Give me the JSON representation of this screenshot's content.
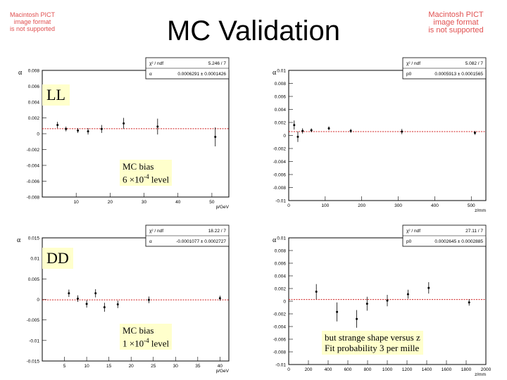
{
  "page_title": "MC Validation",
  "pict_notice": {
    "left": [
      "Macintosh PICT",
      "image format",
      "is not supported"
    ],
    "right": [
      "Macintosh PICT",
      "image format",
      "is not supported"
    ]
  },
  "labels": {
    "ll": "LL",
    "dd": "DD",
    "note_ll": [
      "MC bias",
      "6 ×10",
      "-4",
      " level"
    ],
    "note_dd": [
      "MC bias",
      "1 ×10",
      "-4",
      " level"
    ],
    "note_z": [
      "but strange shape versus z",
      "Fit probability 3 per mille"
    ]
  },
  "chart_data": [
    {
      "type": "scatter",
      "id": "ll-p",
      "xlabel": "p/GeV",
      "ylabel": "α",
      "xlim": [
        0,
        55
      ],
      "ylim": [
        -0.008,
        0.008
      ],
      "xticks": [
        10,
        20,
        30,
        40,
        50
      ],
      "yticks": [
        -0.008,
        -0.006,
        -0.004,
        -0.002,
        0,
        0.002,
        0.004,
        0.006,
        0.008
      ],
      "ytick_labels": [
        "-0.008",
        "-0.006",
        "-0.004",
        "-0.002",
        "0",
        "0.002",
        "0.004",
        "0.006",
        "0.008"
      ],
      "points": [
        {
          "x": 4.5,
          "y": 0.0011,
          "err": 0.0004
        },
        {
          "x": 7,
          "y": 0.0006,
          "err": 0.0003
        },
        {
          "x": 10.5,
          "y": 0.0004,
          "err": 0.0003
        },
        {
          "x": 13.5,
          "y": 0.0003,
          "err": 0.0004
        },
        {
          "x": 17.5,
          "y": 0.0006,
          "err": 0.0005
        },
        {
          "x": 24,
          "y": 0.0013,
          "err": 0.0007
        },
        {
          "x": 34,
          "y": 0.0009,
          "err": 0.001
        },
        {
          "x": 51,
          "y": -0.0004,
          "err": 0.0012
        }
      ],
      "fit_value": 0.0006291,
      "stats": [
        [
          "χ² / ndf",
          "5.246 / 7"
        ],
        [
          "α",
          "0.0006291 ± 0.0001426"
        ]
      ]
    },
    {
      "type": "scatter",
      "id": "ll-z",
      "xlabel": "z/mm",
      "ylabel": "α",
      "xlim": [
        0,
        540
      ],
      "ylim": [
        -0.01,
        0.01
      ],
      "xticks": [
        0,
        100,
        200,
        300,
        400,
        500
      ],
      "yticks": [
        -0.01,
        -0.008,
        -0.006,
        -0.004,
        -0.002,
        0,
        0.002,
        0.004,
        0.006,
        0.008,
        0.01
      ],
      "ytick_labels": [
        "-0.01",
        "-0.008",
        "-0.006",
        "-0.004",
        "-0.002",
        "0",
        "0.002",
        "0.004",
        "0.006",
        "0.008",
        "0.01"
      ],
      "points": [
        {
          "x": 15,
          "y": 0.0016,
          "err": 0.0007
        },
        {
          "x": 25,
          "y": -0.0002,
          "err": 0.0008
        },
        {
          "x": 38,
          "y": 0.0007,
          "err": 0.0004
        },
        {
          "x": 62,
          "y": 0.0008,
          "err": 0.0003
        },
        {
          "x": 110,
          "y": 0.0011,
          "err": 0.0003
        },
        {
          "x": 170,
          "y": 0.0007,
          "err": 0.0003
        },
        {
          "x": 310,
          "y": 0.0006,
          "err": 0.0004
        },
        {
          "x": 510,
          "y": 0.0004,
          "err": 0.0003
        }
      ],
      "fit_value": 0.0005913,
      "stats": [
        [
          "χ² / ndf",
          "5.082 / 7"
        ],
        [
          "p0",
          "0.0005913 ± 0.0001565"
        ]
      ]
    },
    {
      "type": "scatter",
      "id": "dd-p",
      "xlabel": "p/GeV",
      "ylabel": "α",
      "xlim": [
        0,
        42
      ],
      "ylim": [
        -0.015,
        0.015
      ],
      "xticks": [
        5,
        10,
        15,
        20,
        25,
        30,
        35,
        40
      ],
      "yticks": [
        -0.015,
        -0.01,
        -0.005,
        0,
        0.005,
        0.01,
        0.015
      ],
      "ytick_labels": [
        "-0.015",
        "-0.01",
        "-0.005",
        "0",
        "0.005",
        "0.01",
        "0.015"
      ],
      "points": [
        {
          "x": 6,
          "y": 0.0015,
          "err": 0.0009
        },
        {
          "x": 8,
          "y": 0.0002,
          "err": 0.0008
        },
        {
          "x": 10,
          "y": -0.0011,
          "err": 0.0009
        },
        {
          "x": 12,
          "y": 0.0015,
          "err": 0.001
        },
        {
          "x": 14,
          "y": -0.0019,
          "err": 0.0011
        },
        {
          "x": 17,
          "y": -0.0012,
          "err": 0.0009
        },
        {
          "x": 24,
          "y": -0.0001,
          "err": 0.0008
        },
        {
          "x": 40,
          "y": 0.0003,
          "err": 0.0006
        }
      ],
      "fit_value": -0.0001077,
      "stats": [
        [
          "χ² / ndf",
          "18.22 / 7"
        ],
        [
          "α",
          "-0.0001077 ± 0.0002727"
        ]
      ]
    },
    {
      "type": "scatter",
      "id": "dd-z",
      "xlabel": "z/mm",
      "ylabel": "α",
      "xlim": [
        0,
        2000
      ],
      "ylim": [
        -0.01,
        0.01
      ],
      "xticks": [
        0,
        200,
        400,
        600,
        800,
        1000,
        1200,
        1400,
        1600,
        1800,
        2000
      ],
      "yticks": [
        -0.01,
        -0.008,
        -0.006,
        -0.004,
        -0.002,
        0,
        0.002,
        0.004,
        0.006,
        0.008,
        0.01
      ],
      "ytick_labels": [
        "-0.01",
        "-0.008",
        "-0.006",
        "-0.004",
        "-0.002",
        "0",
        "0.002",
        "0.004",
        "0.006",
        "0.008",
        "0.01"
      ],
      "points": [
        {
          "x": 280,
          "y": 0.0015,
          "err": 0.0012
        },
        {
          "x": 490,
          "y": -0.0017,
          "err": 0.0015
        },
        {
          "x": 690,
          "y": -0.0028,
          "err": 0.0014
        },
        {
          "x": 795,
          "y": -0.0004,
          "err": 0.0011
        },
        {
          "x": 1000,
          "y": 0.0001,
          "err": 0.0009
        },
        {
          "x": 1210,
          "y": 0.0011,
          "err": 0.0007
        },
        {
          "x": 1420,
          "y": 0.0021,
          "err": 0.0009
        },
        {
          "x": 1830,
          "y": -0.0002,
          "err": 0.0005
        }
      ],
      "fit_value": 0.0002645,
      "stats": [
        [
          "χ² / ndf",
          "27.11 / 7"
        ],
        [
          "p0",
          "0.0002645 ± 0.0002885"
        ]
      ]
    }
  ]
}
